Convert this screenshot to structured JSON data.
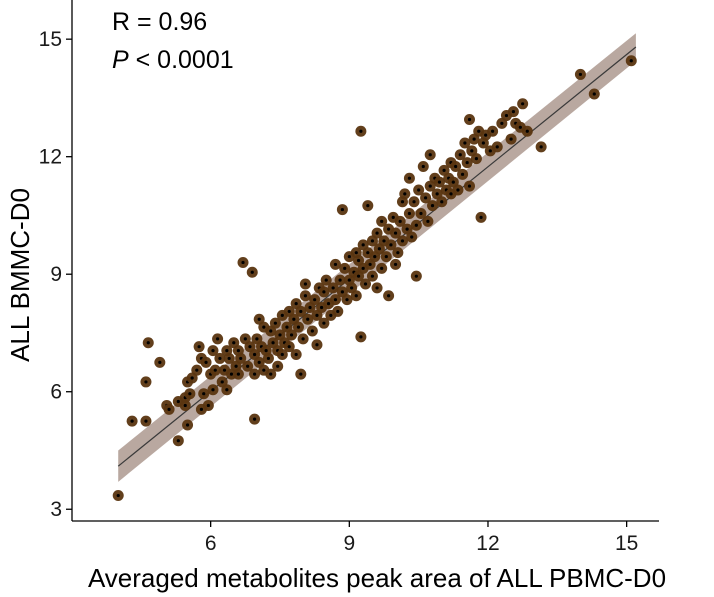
{
  "chart_data": {
    "type": "scatter",
    "xlabel": "Averaged metabolites peak area of ALL PBMC-D0",
    "ylabel": "ALL BMMC-D0",
    "xlim": [
      3.0,
      15.7
    ],
    "ylim": [
      2.7,
      16.0
    ],
    "xticks": [
      6,
      9,
      12,
      15
    ],
    "yticks": [
      3,
      6,
      9,
      12,
      15
    ],
    "grid": false,
    "annotations": {
      "r_text": "R = 0.96",
      "p_symbol": "P",
      "p_rest": " < 0.0001"
    },
    "regression": {
      "x": [
        4.0,
        15.2
      ],
      "y": [
        4.1,
        14.8
      ],
      "ci_upper": [
        4.5,
        15.15
      ],
      "ci_lower": [
        3.7,
        14.45
      ]
    },
    "colors": {
      "point": "#5a3510",
      "point_center": "#000000",
      "ci_band": "#ad998f",
      "line": "#3a3a3a"
    },
    "points": [
      [
        4.0,
        3.35
      ],
      [
        4.3,
        5.25
      ],
      [
        4.6,
        5.25
      ],
      [
        4.65,
        7.25
      ],
      [
        4.9,
        6.75
      ],
      [
        4.6,
        6.25
      ],
      [
        5.05,
        5.65
      ],
      [
        5.1,
        5.55
      ],
      [
        5.3,
        5.75
      ],
      [
        5.3,
        4.75
      ],
      [
        5.45,
        5.85
      ],
      [
        5.45,
        5.65
      ],
      [
        5.5,
        6.25
      ],
      [
        5.5,
        5.15
      ],
      [
        5.55,
        5.95
      ],
      [
        5.6,
        6.35
      ],
      [
        5.7,
        6.55
      ],
      [
        5.75,
        7.15
      ],
      [
        5.8,
        6.85
      ],
      [
        5.8,
        5.55
      ],
      [
        5.85,
        5.95
      ],
      [
        5.9,
        6.75
      ],
      [
        5.95,
        5.65
      ],
      [
        6.0,
        6.45
      ],
      [
        6.05,
        7.05
      ],
      [
        6.05,
        6.05
      ],
      [
        6.1,
        6.55
      ],
      [
        6.15,
        7.35
      ],
      [
        6.2,
        6.85
      ],
      [
        6.25,
        6.25
      ],
      [
        6.3,
        6.55
      ],
      [
        6.35,
        7.05
      ],
      [
        6.35,
        6.05
      ],
      [
        6.4,
        6.85
      ],
      [
        6.45,
        6.45
      ],
      [
        6.5,
        7.25
      ],
      [
        6.55,
        6.65
      ],
      [
        6.6,
        7.05
      ],
      [
        6.6,
        6.45
      ],
      [
        6.65,
        6.85
      ],
      [
        6.7,
        9.3
      ],
      [
        6.75,
        7.35
      ],
      [
        6.8,
        6.65
      ],
      [
        6.85,
        7.15
      ],
      [
        6.9,
        9.05
      ],
      [
        6.95,
        6.95
      ],
      [
        6.95,
        6.45
      ],
      [
        6.95,
        5.3
      ],
      [
        7.0,
        7.35
      ],
      [
        7.05,
        6.75
      ],
      [
        7.05,
        7.85
      ],
      [
        7.1,
        7.15
      ],
      [
        7.15,
        6.55
      ],
      [
        7.15,
        7.65
      ],
      [
        7.2,
        7.05
      ],
      [
        7.25,
        6.85
      ],
      [
        7.3,
        7.55
      ],
      [
        7.3,
        6.45
      ],
      [
        7.35,
        7.25
      ],
      [
        7.4,
        7.75
      ],
      [
        7.45,
        7.05
      ],
      [
        7.45,
        6.65
      ],
      [
        7.5,
        7.45
      ],
      [
        7.55,
        7.95
      ],
      [
        7.55,
        6.95
      ],
      [
        7.6,
        7.25
      ],
      [
        7.65,
        7.65
      ],
      [
        7.7,
        8.05
      ],
      [
        7.7,
        7.15
      ],
      [
        7.75,
        7.45
      ],
      [
        7.8,
        7.85
      ],
      [
        7.85,
        8.25
      ],
      [
        7.85,
        6.95
      ],
      [
        7.9,
        7.65
      ],
      [
        7.95,
        6.45
      ],
      [
        7.95,
        8.05
      ],
      [
        8.0,
        7.35
      ],
      [
        8.05,
        8.45
      ],
      [
        8.05,
        8.75
      ],
      [
        8.1,
        7.85
      ],
      [
        8.15,
        8.15
      ],
      [
        8.2,
        7.55
      ],
      [
        8.25,
        8.35
      ],
      [
        8.3,
        7.95
      ],
      [
        8.3,
        7.2
      ],
      [
        8.35,
        8.65
      ],
      [
        8.4,
        8.15
      ],
      [
        8.45,
        7.75
      ],
      [
        8.45,
        8.55
      ],
      [
        8.5,
        8.85
      ],
      [
        8.55,
        8.25
      ],
      [
        8.6,
        7.95
      ],
      [
        8.65,
        8.65
      ],
      [
        8.7,
        9.25
      ],
      [
        8.7,
        8.35
      ],
      [
        8.75,
        8.05
      ],
      [
        8.8,
        8.85
      ],
      [
        8.85,
        10.65
      ],
      [
        8.85,
        8.55
      ],
      [
        8.9,
        9.15
      ],
      [
        8.95,
        8.35
      ],
      [
        9.0,
        8.85
      ],
      [
        9.0,
        9.45
      ],
      [
        9.05,
        8.65
      ],
      [
        9.1,
        9.05
      ],
      [
        9.15,
        8.45
      ],
      [
        9.15,
        9.55
      ],
      [
        9.2,
        8.95
      ],
      [
        9.2,
        9.35
      ],
      [
        9.25,
        12.65
      ],
      [
        9.25,
        7.4
      ],
      [
        9.3,
        9.75
      ],
      [
        9.3,
        9.15
      ],
      [
        9.35,
        8.75
      ],
      [
        9.4,
        9.55
      ],
      [
        9.4,
        10.75
      ],
      [
        9.45,
        9.25
      ],
      [
        9.5,
        9.85
      ],
      [
        9.5,
        8.95
      ],
      [
        9.55,
        9.45
      ],
      [
        9.6,
        10.05
      ],
      [
        9.6,
        8.65
      ],
      [
        9.65,
        9.65
      ],
      [
        9.7,
        9.15
      ],
      [
        9.7,
        10.35
      ],
      [
        9.75,
        9.85
      ],
      [
        9.8,
        9.45
      ],
      [
        9.85,
        10.15
      ],
      [
        9.85,
        8.45
      ],
      [
        9.9,
        9.75
      ],
      [
        9.95,
        10.45
      ],
      [
        10.0,
        9.25
      ],
      [
        10.0,
        10.05
      ],
      [
        10.05,
        9.55
      ],
      [
        10.1,
        10.35
      ],
      [
        10.15,
        10.85
      ],
      [
        10.15,
        9.85
      ],
      [
        10.2,
        11.05
      ],
      [
        10.25,
        10.15
      ],
      [
        10.3,
        11.45
      ],
      [
        10.3,
        10.55
      ],
      [
        10.35,
        9.95
      ],
      [
        10.4,
        10.85
      ],
      [
        10.45,
        10.25
      ],
      [
        10.45,
        8.95
      ],
      [
        10.5,
        11.15
      ],
      [
        10.55,
        10.55
      ],
      [
        10.6,
        11.75
      ],
      [
        10.65,
        10.95
      ],
      [
        10.7,
        10.35
      ],
      [
        10.75,
        11.25
      ],
      [
        10.75,
        12.05
      ],
      [
        10.8,
        10.75
      ],
      [
        10.85,
        11.45
      ],
      [
        10.9,
        11.05
      ],
      [
        10.95,
        11.35
      ],
      [
        11.0,
        10.85
      ],
      [
        11.05,
        11.65
      ],
      [
        11.1,
        11.15
      ],
      [
        11.15,
        11.45
      ],
      [
        11.2,
        11.05
      ],
      [
        11.2,
        11.85
      ],
      [
        11.25,
        11.35
      ],
      [
        11.3,
        11.75
      ],
      [
        11.35,
        11.15
      ],
      [
        11.4,
        12.05
      ],
      [
        11.45,
        11.55
      ],
      [
        11.5,
        12.35
      ],
      [
        11.55,
        11.85
      ],
      [
        11.6,
        12.95
      ],
      [
        11.6,
        11.25
      ],
      [
        11.65,
        12.15
      ],
      [
        11.7,
        12.45
      ],
      [
        11.75,
        11.95
      ],
      [
        11.8,
        12.65
      ],
      [
        11.85,
        10.45
      ],
      [
        11.9,
        12.35
      ],
      [
        11.95,
        12.55
      ],
      [
        12.05,
        12.15
      ],
      [
        12.1,
        12.65
      ],
      [
        12.2,
        12.25
      ],
      [
        12.3,
        12.85
      ],
      [
        12.4,
        13.05
      ],
      [
        12.5,
        12.45
      ],
      [
        12.55,
        13.15
      ],
      [
        12.6,
        12.85
      ],
      [
        12.7,
        12.75
      ],
      [
        12.75,
        13.35
      ],
      [
        12.85,
        12.65
      ],
      [
        13.15,
        12.25
      ],
      [
        14.0,
        14.1
      ],
      [
        14.3,
        13.6
      ],
      [
        15.1,
        14.45
      ]
    ]
  }
}
